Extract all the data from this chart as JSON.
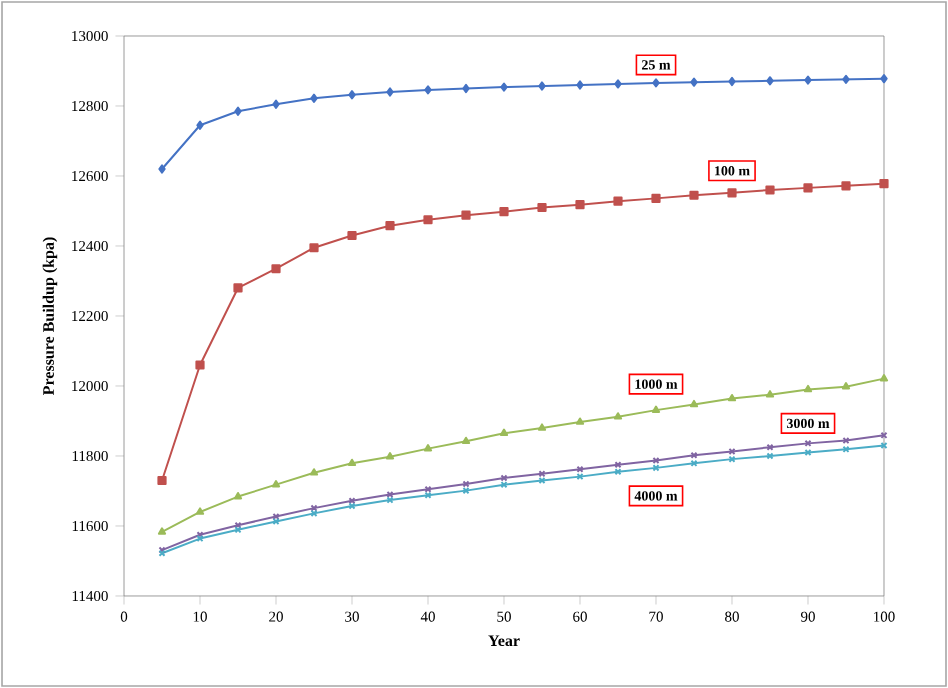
{
  "chart_data": {
    "type": "line",
    "xlabel": "Year",
    "ylabel": "Pressure Buildup (kpa)",
    "x": [
      5,
      10,
      15,
      20,
      25,
      30,
      35,
      40,
      45,
      50,
      55,
      60,
      65,
      70,
      75,
      80,
      85,
      90,
      95,
      100
    ],
    "xlim": [
      0,
      100
    ],
    "xticks": [
      0,
      10,
      20,
      30,
      40,
      50,
      60,
      70,
      80,
      90,
      100
    ],
    "ylim": [
      11400,
      13000
    ],
    "yticks": [
      11400,
      11600,
      11800,
      12000,
      12200,
      12400,
      12600,
      12800,
      13000
    ],
    "grid": false,
    "legend": false,
    "line_style": "solid",
    "series": [
      {
        "name": "25 m",
        "color": "#4472c4",
        "marker": "diamond",
        "values": [
          12620,
          12745,
          12785,
          12805,
          12822,
          12832,
          12840,
          12846,
          12850,
          12854,
          12857,
          12860,
          12863,
          12866,
          12868,
          12870,
          12872,
          12874,
          12876,
          12878
        ]
      },
      {
        "name": "100 m",
        "color": "#c0504d",
        "marker": "square",
        "values": [
          11730,
          12060,
          12280,
          12335,
          12395,
          12430,
          12458,
          12475,
          12488,
          12498,
          12510,
          12518,
          12528,
          12536,
          12545,
          12552,
          12560,
          12566,
          12572,
          12578
        ]
      },
      {
        "name": "1000 m",
        "color": "#9bbb59",
        "marker": "triangle",
        "values": [
          11583,
          11640,
          11684,
          11718,
          11752,
          11779,
          11798,
          11821,
          11842,
          11865,
          11880,
          11897,
          11912,
          11931,
          11947,
          11964,
          11975,
          11990,
          11998,
          12021
        ]
      },
      {
        "name": "3000 m",
        "color": "#8064a2",
        "marker": "cross",
        "values": [
          11531,
          11575,
          11602,
          11627,
          11651,
          11672,
          11690,
          11705,
          11720,
          11737,
          11749,
          11762,
          11775,
          11787,
          11802,
          11813,
          11825,
          11836,
          11844,
          11859
        ]
      },
      {
        "name": "4000 m",
        "color": "#4bacc6",
        "marker": "cross",
        "values": [
          11522,
          11564,
          11589,
          11613,
          11636,
          11657,
          11674,
          11688,
          11701,
          11718,
          11730,
          11741,
          11755,
          11766,
          11779,
          11791,
          11800,
          11810,
          11819,
          11830
        ]
      }
    ]
  }
}
